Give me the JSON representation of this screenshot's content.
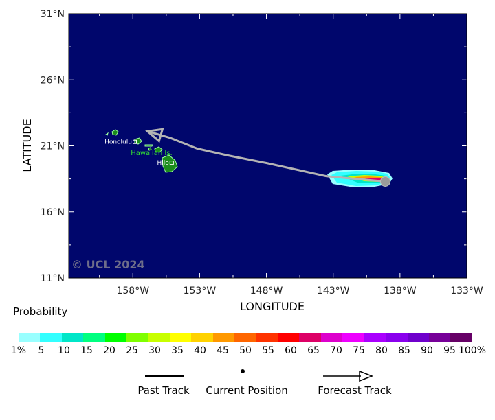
{
  "watermark": "© UCL 2024",
  "axes": {
    "xlabel": "LONGITUDE",
    "ylabel": "LATITUDE",
    "lon_ticks": [
      {
        "value": -158,
        "label": "158°W"
      },
      {
        "value": -153,
        "label": "153°W"
      },
      {
        "value": -148,
        "label": "148°W"
      },
      {
        "value": -143,
        "label": "143°W"
      },
      {
        "value": -138,
        "label": "138°W"
      },
      {
        "value": -133,
        "label": "133°W"
      }
    ],
    "lat_ticks": [
      {
        "value": 31,
        "label": "31°N"
      },
      {
        "value": 26,
        "label": "26°N"
      },
      {
        "value": 21,
        "label": "21°N"
      },
      {
        "value": 16,
        "label": "16°N"
      },
      {
        "value": 11,
        "label": "11°N"
      }
    ],
    "lon_range": [
      -162.8,
      -133
    ],
    "lat_range": [
      11,
      31
    ]
  },
  "places": [
    {
      "name": "Honolulu",
      "lon": -157.86,
      "lat": 21.3
    },
    {
      "name": "Hilo",
      "lon": -155.09,
      "lat": 19.72
    }
  ],
  "region_label": {
    "text": "Hawaiian Is.",
    "lon": -156.6,
    "lat": 20.3
  },
  "track": {
    "current": {
      "lon": -139.1,
      "lat": 18.3
    },
    "forecast": [
      {
        "lon": -139.1,
        "lat": 18.3
      },
      {
        "lon": -143.5,
        "lat": 18.7
      },
      {
        "lon": -148,
        "lat": 19.7
      },
      {
        "lon": -151,
        "lat": 20.3
      },
      {
        "lon": -153.2,
        "lat": 20.8
      },
      {
        "lon": -155.2,
        "lat": 21.6
      },
      {
        "lon": -156.9,
        "lat": 22.1
      }
    ]
  },
  "legend": {
    "title": "Probability",
    "colors": [
      "#99ffff",
      "#33ffff",
      "#00e6c8",
      "#00ff80",
      "#00ff00",
      "#80ff00",
      "#c8ff00",
      "#ffff00",
      "#ffd200",
      "#ff9900",
      "#ff6600",
      "#ff3300",
      "#ff0000",
      "#dd0066",
      "#dd00cc",
      "#ee00ff",
      "#aa00ff",
      "#8a00ee",
      "#6f00cc",
      "#770099",
      "#660066"
    ],
    "labels": [
      "1%",
      "5",
      "10",
      "15",
      "20",
      "25",
      "30",
      "35",
      "40",
      "45",
      "50",
      "55",
      "60",
      "65",
      "70",
      "75",
      "80",
      "85",
      "90",
      "95",
      "100%"
    ],
    "past_track": "Past Track",
    "current_position": "Current Position",
    "forecast_track": "Forecast Track"
  }
}
